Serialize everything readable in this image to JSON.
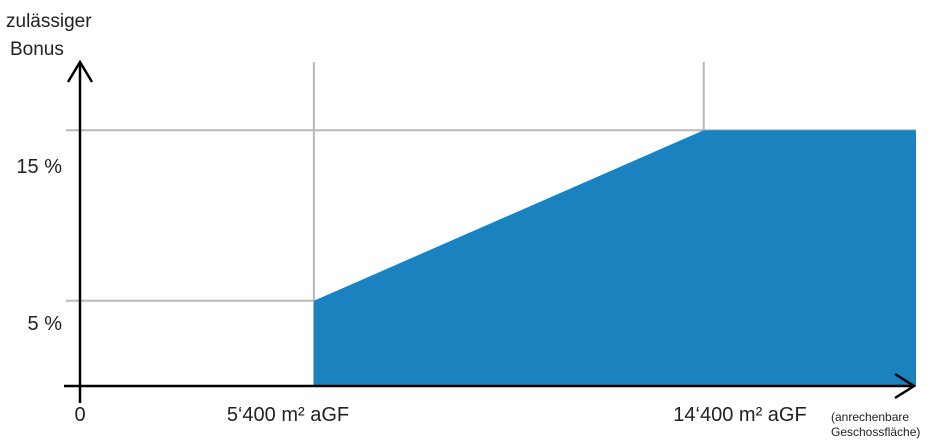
{
  "chart_data": {
    "type": "area",
    "ylabel_lines": [
      "zulässiger",
      "Bonus"
    ],
    "xlabel_lines": [
      "(anrechenbare",
      "Geschossfläche)"
    ],
    "x_ticks": [
      {
        "value": 0,
        "label": "0"
      },
      {
        "value": 5400,
        "label": "5‘400 m² aGF"
      },
      {
        "value": 14400,
        "label": "14‘400 m² aGF"
      }
    ],
    "y_ticks": [
      {
        "value": 5,
        "label": "5 %"
      },
      {
        "value": 15,
        "label": "15 %"
      }
    ],
    "xlim": [
      0,
      19300
    ],
    "ylim": [
      0,
      19
    ],
    "series": [
      {
        "x": [
          5400,
          14400,
          19300
        ],
        "y": [
          5,
          15,
          15
        ],
        "color": "#1a82bf"
      }
    ],
    "grid": true,
    "grid_color": "#b8b8b8",
    "axis_color": "#000000"
  }
}
